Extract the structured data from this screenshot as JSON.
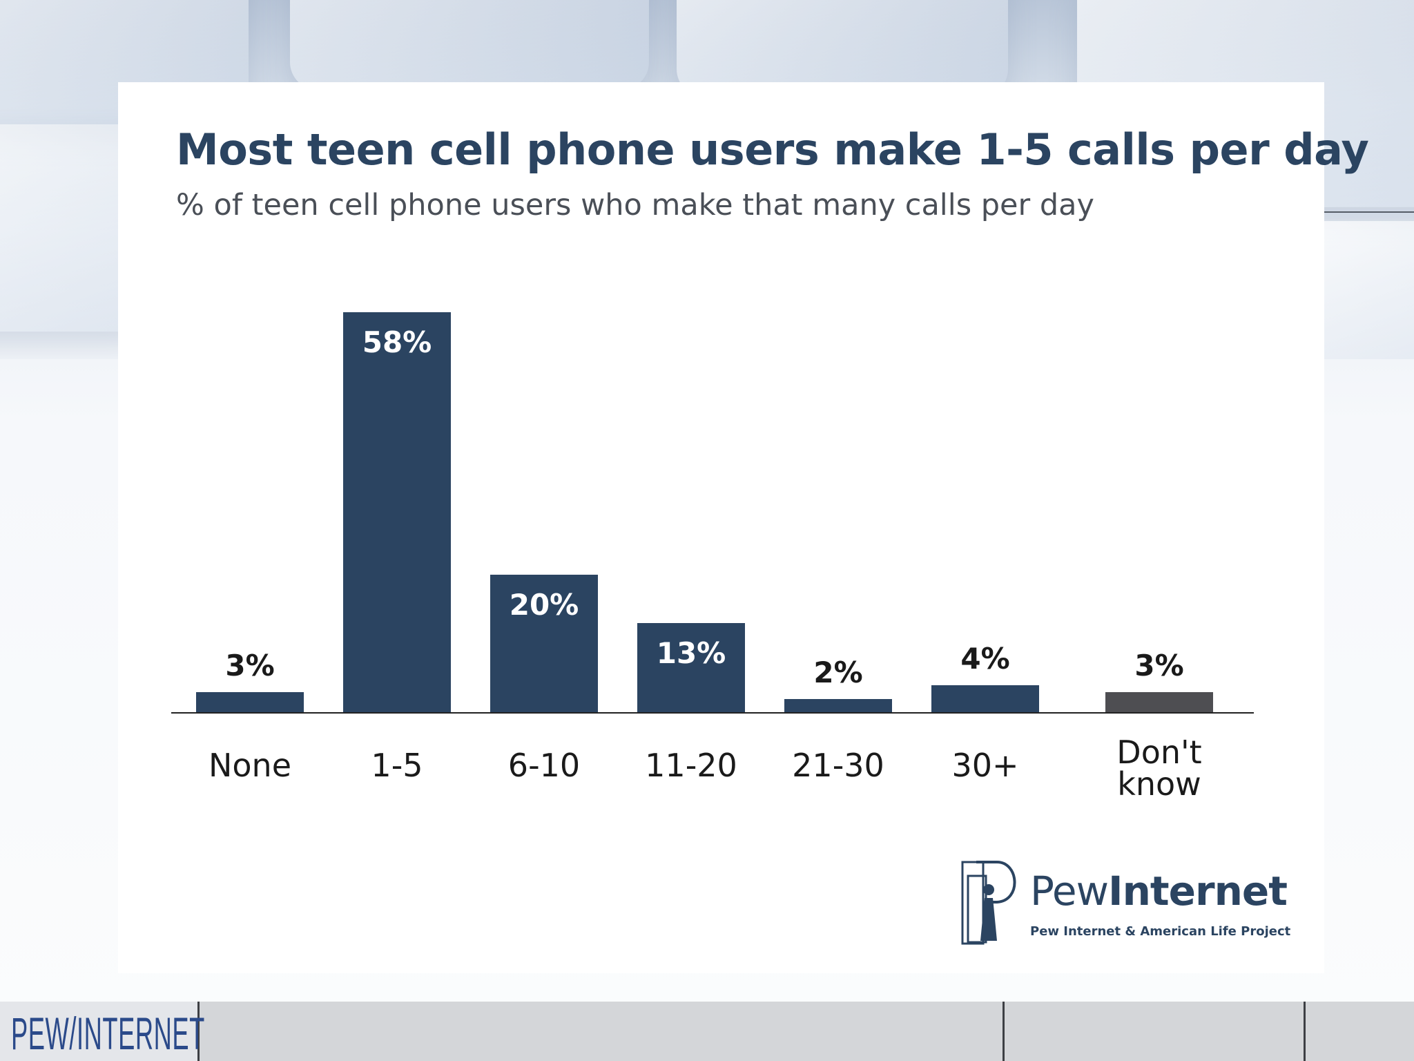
{
  "header": {
    "title": "Most teen cell phone users make 1-5 calls per day",
    "subtitle": "% of teen cell phone users who make that many calls per day"
  },
  "chart_data": {
    "type": "bar",
    "title": "Most teen cell phone users make 1-5 calls per day",
    "subtitle": "% of teen cell phone users who make that many calls per day",
    "categories": [
      "None",
      "1-5",
      "6-10",
      "11-20",
      "21-30",
      "30+",
      "Don't know"
    ],
    "values": [
      3,
      58,
      20,
      13,
      2,
      4,
      3
    ],
    "data_labels": [
      "3%",
      "58%",
      "20%",
      "13%",
      "2%",
      "4%",
      "3%"
    ],
    "ylim": [
      0,
      60
    ],
    "grid": false,
    "legend": "none",
    "colors": {
      "bar": "#2b4461",
      "dont_know_bar": "#4e4e52",
      "label_inside": "#ffffff",
      "label_outside": "#1a1a1a"
    }
  },
  "logo": {
    "name_light": "Pew",
    "name_bold": "Internet",
    "tagline": "Pew Internet & American Life Project"
  },
  "footer": {
    "brand": "PEW/INTERNET"
  }
}
